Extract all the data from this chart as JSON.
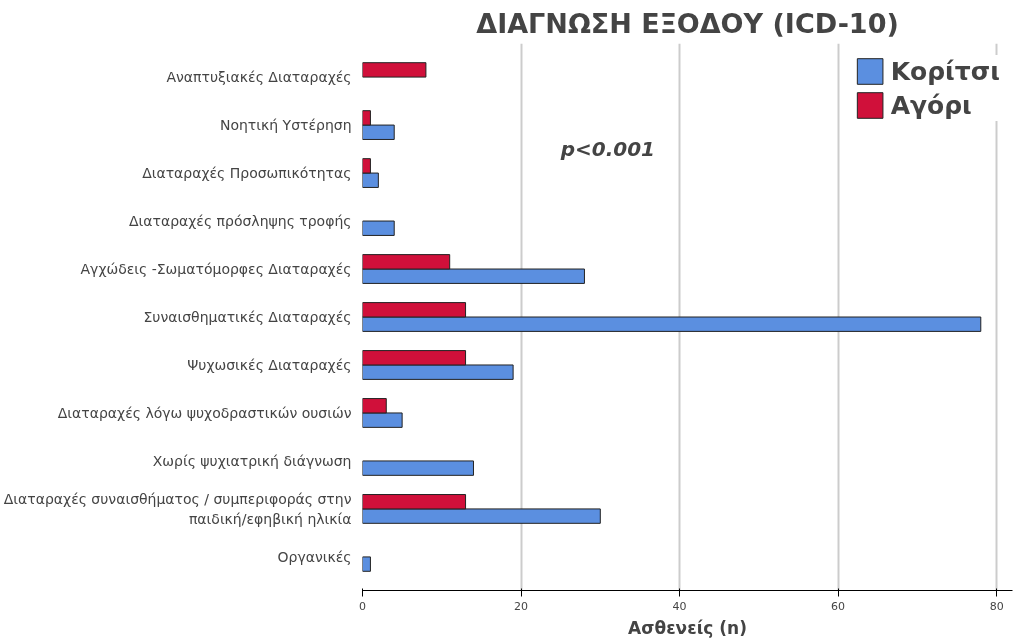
{
  "chart_data": {
    "type": "bar",
    "orientation": "horizontal",
    "title": "ΔΙΑΓΝΩΣΗ ΕΞΟΔΟΥ (ICD-10)",
    "xlabel": "Ασθενείς (n)",
    "categories": [
      "Αναπτυξιακές Διαταραχές",
      "Νοητική Υστέρηση",
      "Διαταραχές Προσωπικότητας",
      "Διαταραχές πρόσληψης τροφής",
      "Αγχώδεις -Σωματόμορφες Διαταραχές",
      "Συναισθηματικές Διαταραχές",
      "Ψυχωσικές Διαταραχές",
      "Διαταραχές λόγω ψυχοδραστικών ουσιών",
      "Χωρίς ψυχιατρική διάγνωση",
      "Διαταραχές συναισθήματος / συμπεριφοράς στην\nπαιδική/εφηβική ηλικία",
      "Οργανικές"
    ],
    "series": [
      {
        "name": "Κορίτσι",
        "color": "#5b8fe0",
        "values": [
          null,
          4,
          2,
          4,
          28,
          78,
          19,
          5,
          14,
          30,
          1
        ]
      },
      {
        "name": "Αγόρι",
        "color": "#d0103a",
        "values": [
          8,
          1,
          1,
          null,
          11,
          13,
          13,
          3,
          null,
          13,
          null
        ]
      }
    ],
    "xlim": [
      0,
      82
    ],
    "xticks": [
      0,
      20,
      40,
      60,
      80
    ],
    "grid": "x",
    "legend": "top right",
    "annotations": [
      "p<0.001"
    ]
  }
}
